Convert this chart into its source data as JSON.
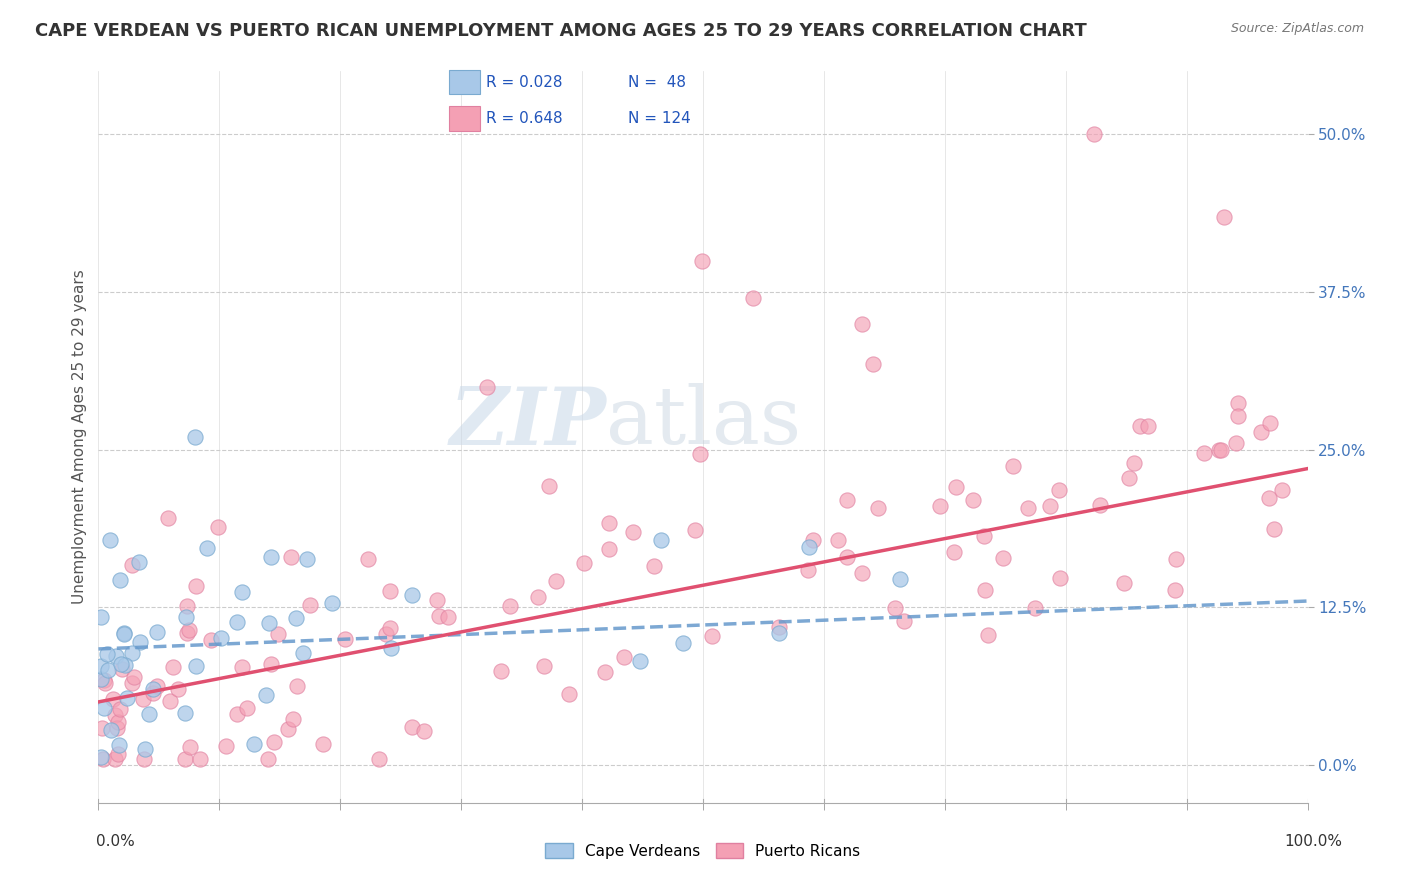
{
  "title": "CAPE VERDEAN VS PUERTO RICAN UNEMPLOYMENT AMONG AGES 25 TO 29 YEARS CORRELATION CHART",
  "source": "Source: ZipAtlas.com",
  "ylabel": "Unemployment Among Ages 25 to 29 years",
  "ytick_values": [
    0.0,
    12.5,
    25.0,
    37.5,
    50.0
  ],
  "xlim": [
    0.0,
    100.0
  ],
  "ylim": [
    -3.0,
    55.0
  ],
  "color_cape": "#a8c8e8",
  "color_puerto": "#f4a0b4",
  "line_color_cape": "#6699cc",
  "line_color_puerto": "#e05070",
  "background_color": "#ffffff",
  "watermark_zip": "ZIP",
  "watermark_atlas": "atlas",
  "title_fontsize": 13,
  "cape_intercept": 9.2,
  "cape_slope": 0.038,
  "puerto_intercept": 5.0,
  "puerto_slope": 0.185
}
